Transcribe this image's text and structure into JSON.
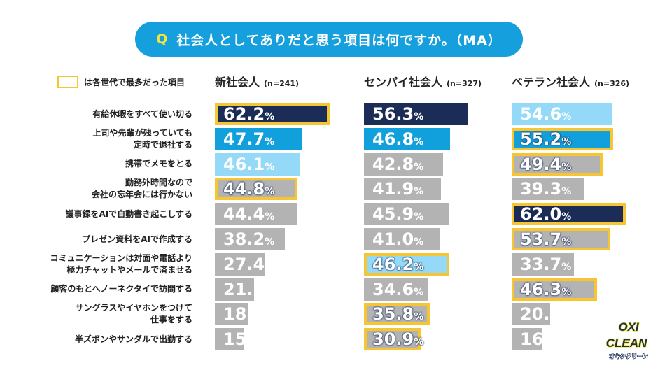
{
  "title": {
    "q_mark": "Q",
    "text": "社会人としてありだと思う項目は何ですか。（MA）"
  },
  "legend": {
    "text": "は各世代で最多だった項目",
    "highlight_color": "#f7c531"
  },
  "logo": {
    "text": "OXI CLEAN オキシクリーン"
  },
  "colors": {
    "rank1": "#1b2d57",
    "rank2": "#12a0dc",
    "rank3": "#94daf8",
    "other": "#b3b3b3"
  },
  "chart_data": {
    "type": "bar",
    "orientation": "horizontal",
    "unit": "%",
    "categories": [
      "有給休暇をすべて使い切る",
      "上司や先輩が残っていても\n定時で退社する",
      "携帯でメモをとる",
      "勤務外時間なので\n会社の忘年会には行かない",
      "議事録をAIで自動書き起こしする",
      "プレゼン資料をAIで作成する",
      "コミュニケーションは対面や電話より\n極力チャットやメールで済ませる",
      "顧客のもとへノーネクタイで訪問する",
      "サングラスやイヤホンをつけて\n仕事をする",
      "半ズボンやサンダルで出勤する"
    ],
    "series": [
      {
        "name": "新社会人",
        "n": "(n=241)",
        "values": [
          62.2,
          47.7,
          46.1,
          44.8,
          44.4,
          38.2,
          27.4,
          21.2,
          18.3,
          15.8
        ],
        "rank": [
          1,
          2,
          3,
          0,
          0,
          0,
          0,
          0,
          0,
          0
        ],
        "highlighted": [
          true,
          false,
          false,
          true,
          false,
          false,
          false,
          false,
          false,
          false
        ]
      },
      {
        "name": "センパイ社会人",
        "n": "(n=327)",
        "values": [
          56.3,
          46.8,
          42.8,
          41.9,
          45.9,
          41.0,
          46.2,
          34.6,
          35.8,
          30.9
        ],
        "rank": [
          1,
          2,
          0,
          0,
          0,
          0,
          3,
          0,
          0,
          0
        ],
        "highlighted": [
          false,
          false,
          false,
          false,
          false,
          false,
          true,
          false,
          true,
          true
        ]
      },
      {
        "name": "ベテラン社会人",
        "n": "(n=326)",
        "values": [
          54.6,
          55.2,
          49.4,
          39.3,
          62.0,
          53.7,
          33.7,
          46.3,
          20.9,
          16.3
        ],
        "rank": [
          3,
          2,
          0,
          0,
          1,
          0,
          0,
          0,
          0,
          0
        ],
        "highlighted": [
          false,
          true,
          true,
          false,
          true,
          true,
          false,
          true,
          false,
          false
        ]
      }
    ]
  }
}
